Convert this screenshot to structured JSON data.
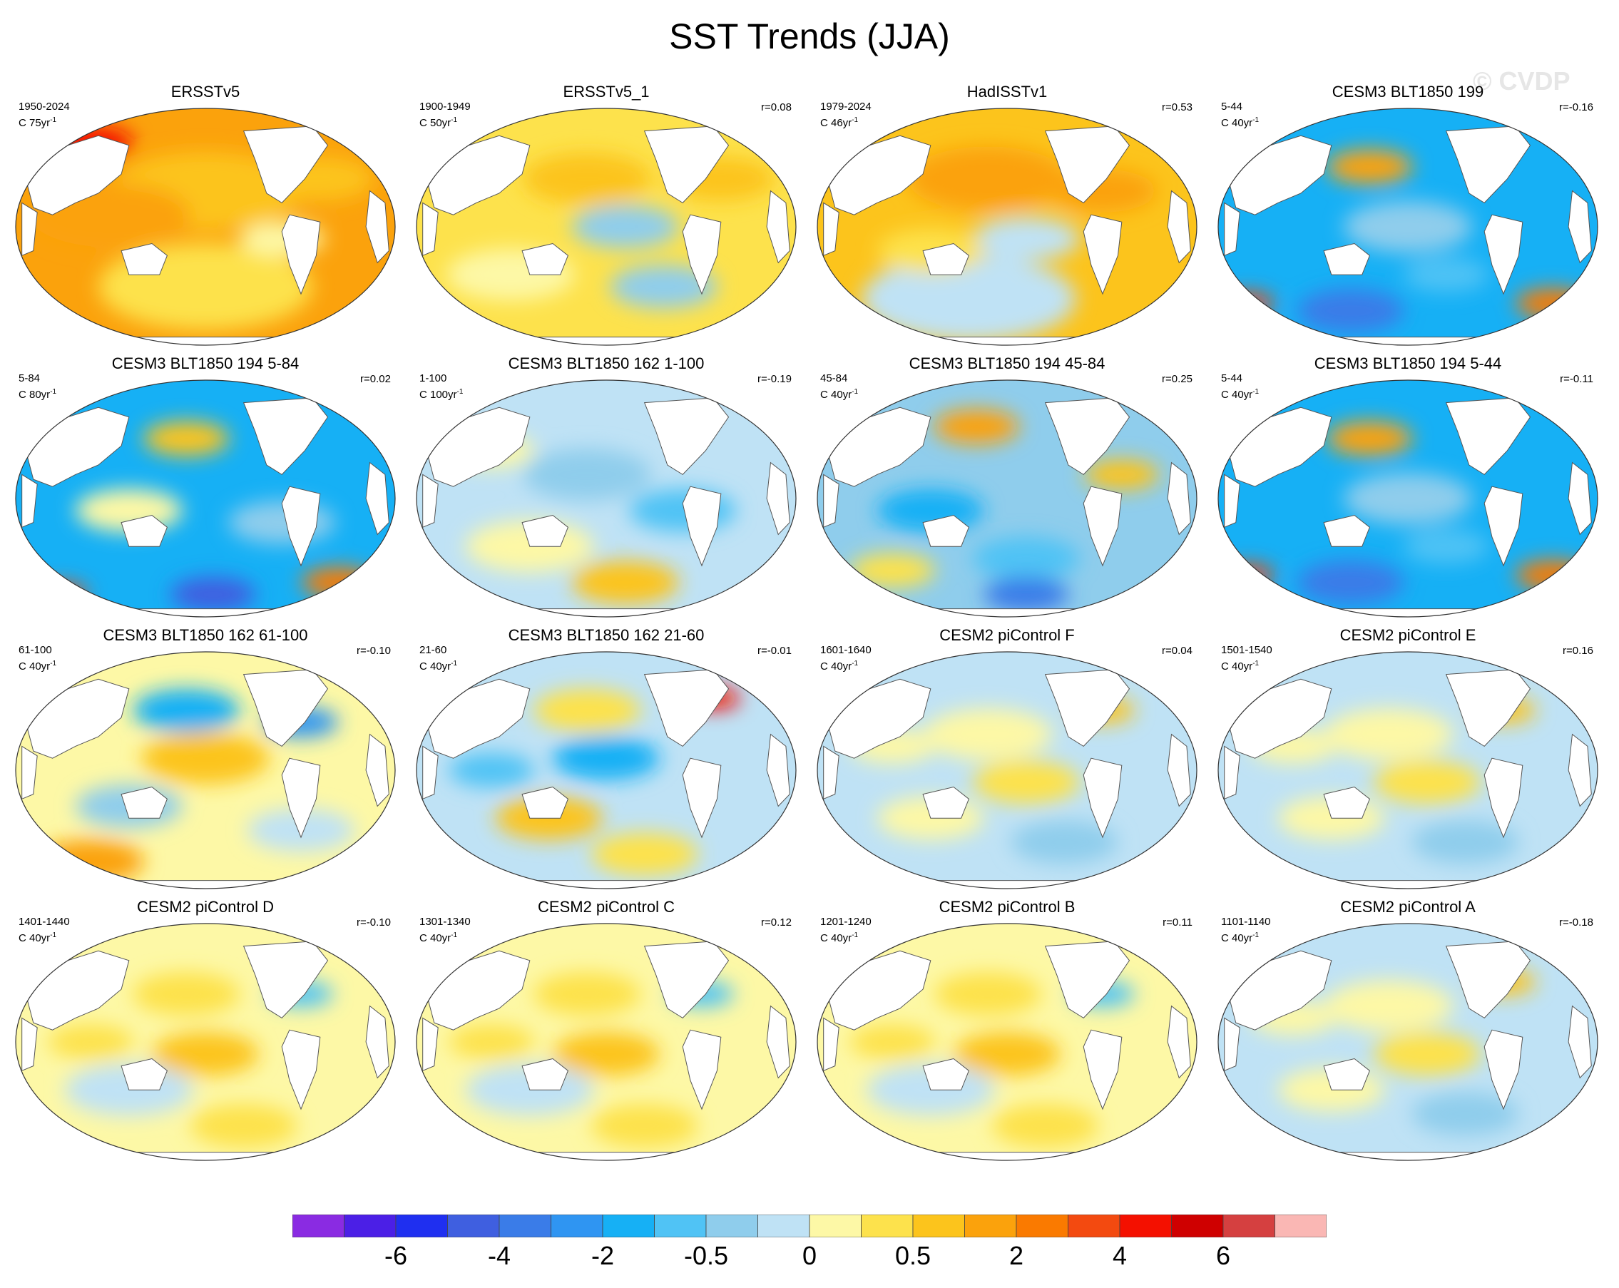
{
  "title": "SST Trends (JJA)",
  "watermark": "© CVDP",
  "unit_prefix": "C",
  "panels": [
    {
      "title": "ERSSTv5",
      "years": "1950-2024",
      "trend_period": "75yr",
      "corr": "",
      "pattern": "warm_obs"
    },
    {
      "title": "ERSSTv5_1",
      "years": "1900-1949",
      "trend_period": "50yr",
      "corr": "r=0.08",
      "pattern": "warm_mixed"
    },
    {
      "title": "HadISSTv1",
      "years": "1979-2024",
      "trend_period": "46yr",
      "corr": "r=0.53",
      "pattern": "warm_obs2"
    },
    {
      "title": "CESM3 BLT1850 199",
      "years": "5-44",
      "trend_period": "40yr",
      "corr": "r=-0.16",
      "pattern": "cool_strong"
    },
    {
      "title": "CESM3 BLT1850 194 5-84",
      "years": "5-84",
      "trend_period": "80yr",
      "corr": "r=0.02",
      "pattern": "cool_strong2"
    },
    {
      "title": "CESM3 BLT1850 162 1-100",
      "years": "1-100",
      "trend_period": "100yr",
      "corr": "r=-0.19",
      "pattern": "cool_light"
    },
    {
      "title": "CESM3 BLT1850 194 45-84",
      "years": "45-84",
      "trend_period": "40yr",
      "corr": "r=0.25",
      "pattern": "cool_mid"
    },
    {
      "title": "CESM3 BLT1850 194 5-44",
      "years": "5-44",
      "trend_period": "40yr",
      "corr": "r=-0.11",
      "pattern": "cool_strong"
    },
    {
      "title": "CESM3 BLT1850 162 61-100",
      "years": "61-100",
      "trend_period": "40yr",
      "corr": "r=-0.10",
      "pattern": "mixed_warm"
    },
    {
      "title": "CESM3 BLT1850 162 21-60",
      "years": "21-60",
      "trend_period": "40yr",
      "corr": "r=-0.01",
      "pattern": "mixed_band"
    },
    {
      "title": "CESM2 piControl F",
      "years": "1601-1640",
      "trend_period": "40yr",
      "corr": "r=0.04",
      "pattern": "neutral"
    },
    {
      "title": "CESM2 piControl E",
      "years": "1501-1540",
      "trend_period": "40yr",
      "corr": "r=0.16",
      "pattern": "neutral"
    },
    {
      "title": "CESM2 piControl D",
      "years": "1401-1440",
      "trend_period": "40yr",
      "corr": "r=-0.10",
      "pattern": "neutral_warm"
    },
    {
      "title": "CESM2 piControl C",
      "years": "1301-1340",
      "trend_period": "40yr",
      "corr": "r=0.12",
      "pattern": "neutral_warm"
    },
    {
      "title": "CESM2 piControl B",
      "years": "1201-1240",
      "trend_period": "40yr",
      "corr": "r=0.11",
      "pattern": "neutral_warm"
    },
    {
      "title": "CESM2 piControl A",
      "years": "1101-1140",
      "trend_period": "40yr",
      "corr": "r=-0.18",
      "pattern": "neutral"
    }
  ],
  "colorbar": {
    "colors": [
      "#8a2be2",
      "#4b1fe6",
      "#1f2ff0",
      "#3f5fe0",
      "#3a7ce8",
      "#2f95f2",
      "#16b0f5",
      "#50c3f5",
      "#8fcdec",
      "#bfe2f5",
      "#fdf8a6",
      "#fde24c",
      "#fcc41c",
      "#fba20c",
      "#fa7a00",
      "#f34a10",
      "#f41000",
      "#cf0000",
      "#d54040",
      "#fab7b4"
    ],
    "labels": [
      "-6",
      "-4",
      "-2",
      "-0.5",
      "0",
      "0.5",
      "2",
      "4",
      "6"
    ]
  }
}
